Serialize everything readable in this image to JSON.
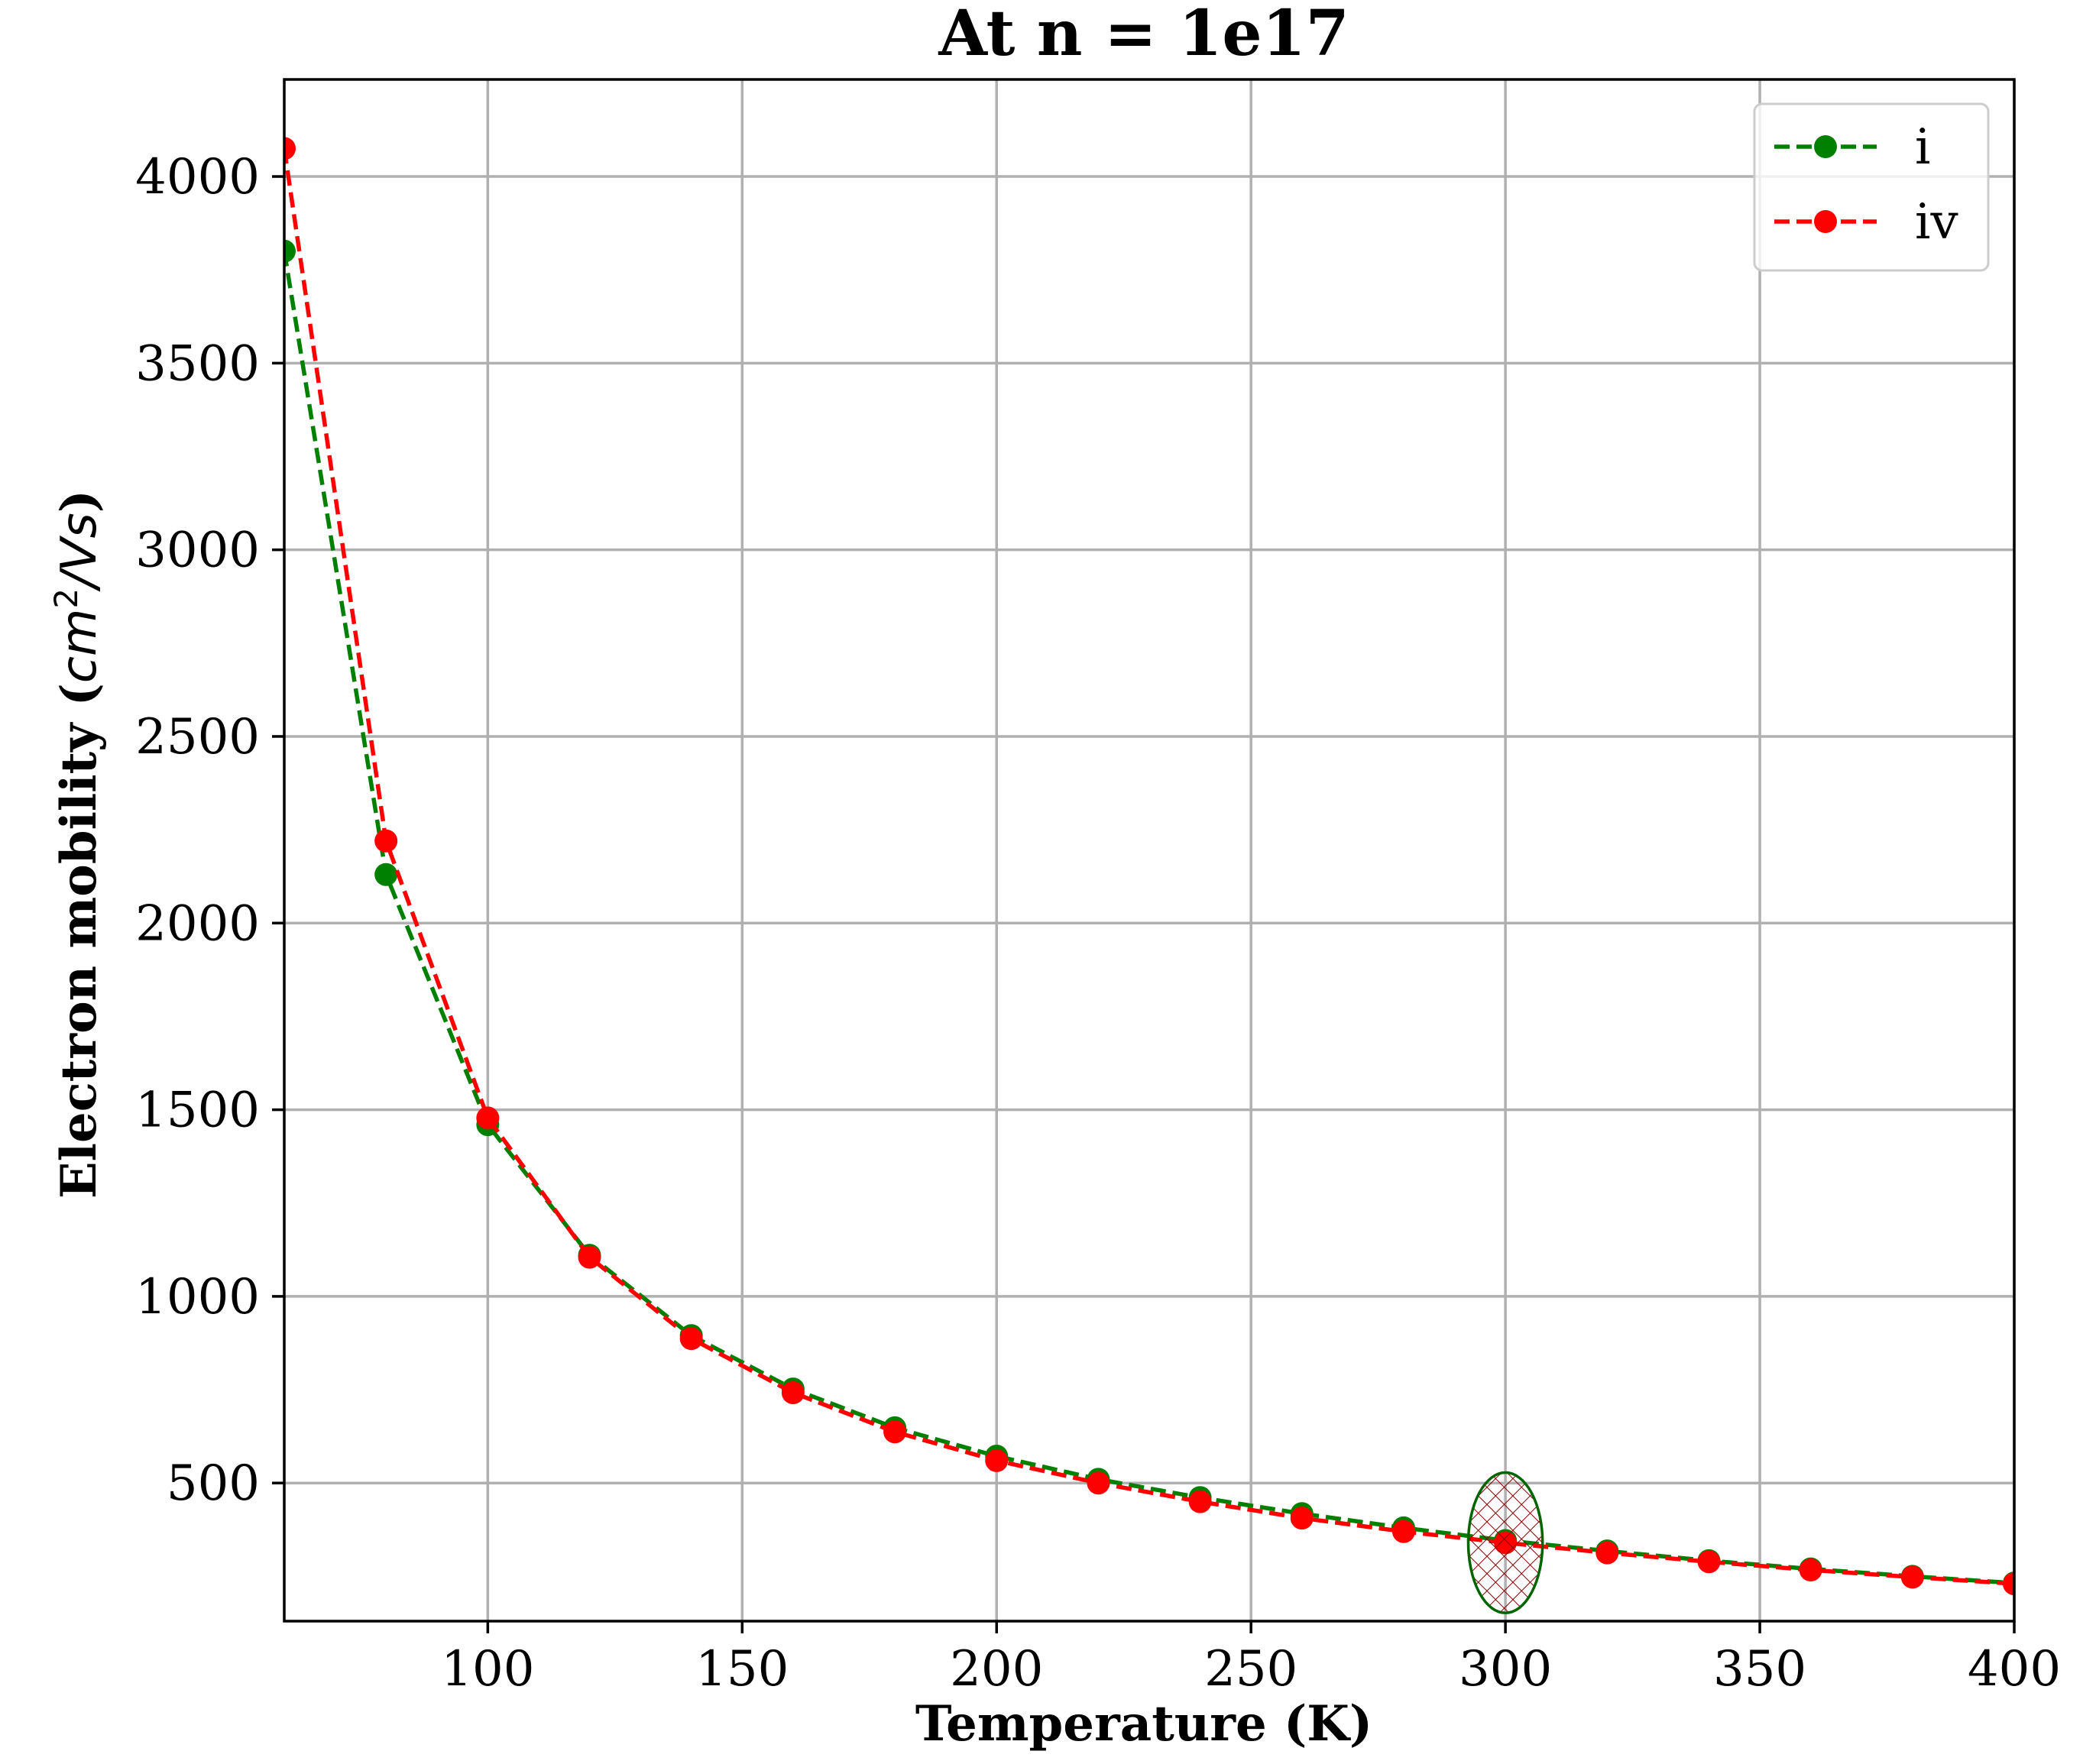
{
  "chart_data": {
    "type": "line",
    "title": "At n = 1e17",
    "xlabel": "Temperature (K)",
    "ylabel": {
      "main": "Electron mobility (",
      "unit_cm": "cm",
      "unit_exp": "2",
      "unit_rest": "/Vs",
      "close": ")"
    },
    "xlim": [
      60,
      400
    ],
    "ylim": [
      130,
      4260
    ],
    "xticks": [
      100,
      150,
      200,
      250,
      300,
      350,
      400
    ],
    "yticks": [
      500,
      1000,
      1500,
      2000,
      2500,
      3000,
      3500,
      4000
    ],
    "grid": true,
    "legend_position": "top-right",
    "x": [
      60,
      80,
      100,
      120,
      140,
      160,
      180,
      200,
      220,
      240,
      260,
      280,
      300,
      320,
      340,
      360,
      380,
      400
    ],
    "series": [
      {
        "name": "i",
        "color": "#008000",
        "line_style": "dashed",
        "marker": "circle",
        "values": [
          3800,
          2130,
          1460,
          1110,
          895,
          752,
          648,
          572,
          510,
          461,
          418,
          380,
          346,
          318,
          292,
          270,
          250,
          232
        ]
      },
      {
        "name": "iv",
        "color": "#ff0000",
        "line_style": "dashed",
        "marker": "circle",
        "values": [
          4075,
          2220,
          1478,
          1105,
          887,
          742,
          637,
          560,
          500,
          450,
          406,
          370,
          340,
          313,
          289,
          267,
          248,
          230
        ]
      }
    ],
    "highlight": {
      "shape": "ellipse",
      "x": 300,
      "y": 340,
      "x_halfwidth": 7.3,
      "y_halfheight": 188,
      "edge_color": "#006400",
      "hatch_color": "#8b0000",
      "hatch": "cross"
    }
  }
}
